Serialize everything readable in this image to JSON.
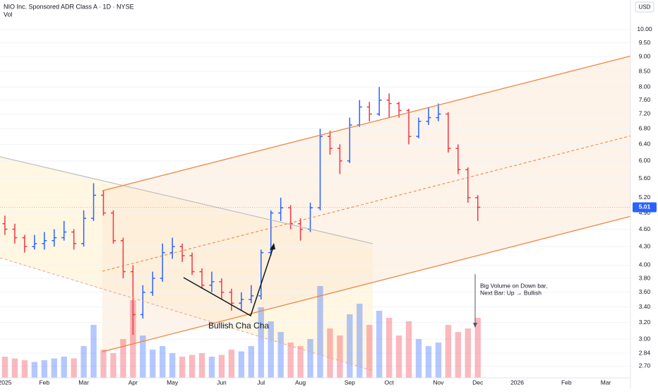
{
  "chart_data": {
    "type": "ohlc",
    "title": "NIO Inc. Sponsored ADR Class A · 1D · NYSE",
    "volume_label": "Vol",
    "currency": "USD",
    "log": true,
    "grid": true,
    "up_color": "#2962ff",
    "down_color": "#f23645",
    "ylim": [
      2.58,
      11.22
    ],
    "yticks": [
      {
        "value": 2.7,
        "label": "2.70"
      },
      {
        "value": 2.84,
        "label": "2.84"
      },
      {
        "value": 3,
        "label": "3.00"
      },
      {
        "value": 3.2,
        "label": "3.20"
      },
      {
        "value": 3.4,
        "label": "3.40"
      },
      {
        "value": 3.6,
        "label": "3.60"
      },
      {
        "value": 3.8,
        "label": "3.80"
      },
      {
        "value": 4,
        "label": "4.00"
      },
      {
        "value": 4.3,
        "label": "4.30"
      },
      {
        "value": 4.6,
        "label": "4.60"
      },
      {
        "value": 4.9,
        "label": "4.90"
      },
      {
        "value": 5.2,
        "label": "5.20"
      },
      {
        "value": 5.6,
        "label": "5.60"
      },
      {
        "value": 6,
        "label": "6.00"
      },
      {
        "value": 6.4,
        "label": "6.40"
      },
      {
        "value": 6.8,
        "label": "6.80"
      },
      {
        "value": 7.2,
        "label": "7.20"
      },
      {
        "value": 7.6,
        "label": "7.60"
      },
      {
        "value": 8,
        "label": "8.00"
      },
      {
        "value": 8.5,
        "label": "8.50"
      },
      {
        "value": 9,
        "label": "9.00"
      },
      {
        "value": 9.5,
        "label": "9.50"
      },
      {
        "value": 10,
        "label": "10.00"
      }
    ],
    "volume_ylim": [
      0,
      300
    ],
    "categories": [
      "2025",
      null,
      null,
      null,
      "Feb",
      null,
      null,
      null,
      "Mar",
      null,
      null,
      null,
      null,
      "Apr",
      null,
      null,
      null,
      "May",
      null,
      null,
      null,
      null,
      "Jun",
      null,
      null,
      null,
      "Jul",
      null,
      null,
      null,
      "Aug",
      null,
      null,
      null,
      null,
      "Sep",
      null,
      null,
      null,
      "Oct",
      null,
      null,
      null,
      null,
      "Nov",
      null,
      null,
      null,
      "Dec",
      null,
      null,
      null,
      "2026",
      null,
      null,
      null,
      null,
      "Feb",
      null,
      null,
      null,
      "Mar",
      null,
      null
    ],
    "open": [
      4.7,
      4.6,
      4.45,
      4.3,
      4.35,
      4.4,
      4.45,
      4.55,
      4.35,
      4.8,
      5.25,
      4.9,
      4.4,
      3.9,
      3.3,
      3.6,
      3.8,
      4.2,
      4.3,
      4.15,
      3.9,
      3.7,
      3.75,
      3.6,
      3.45,
      3.5,
      3.55,
      4.2,
      4.9,
      5.0,
      4.7,
      4.6,
      5.0,
      6.6,
      6.3,
      6.0,
      6.9,
      7.4,
      7.2,
      7.6,
      7.5,
      7.3,
      6.6,
      7.0,
      7.1,
      7.2,
      6.3,
      5.8,
      5.2,
      null,
      null,
      null,
      null,
      null,
      null,
      null,
      null,
      null,
      null,
      null,
      null,
      null,
      null,
      null
    ],
    "high": [
      4.85,
      4.7,
      4.5,
      4.5,
      4.55,
      4.6,
      4.75,
      4.6,
      4.95,
      5.5,
      5.35,
      4.95,
      4.45,
      4.0,
      3.7,
      3.9,
      4.35,
      4.45,
      4.35,
      4.2,
      3.95,
      3.9,
      3.8,
      3.65,
      3.6,
      3.7,
      4.25,
      4.95,
      5.2,
      5.05,
      4.8,
      5.1,
      6.8,
      6.75,
      6.4,
      7.1,
      7.6,
      7.55,
      8.0,
      7.8,
      7.55,
      7.35,
      7.1,
      7.4,
      7.5,
      7.25,
      6.4,
      5.85,
      5.25,
      null,
      null,
      null,
      null,
      null,
      null,
      null,
      null,
      null,
      null,
      null,
      null,
      null,
      null,
      null
    ],
    "low": [
      4.5,
      4.35,
      4.2,
      4.25,
      4.25,
      4.3,
      4.4,
      4.25,
      4.3,
      4.75,
      4.85,
      4.35,
      3.8,
      3.05,
      3.25,
      3.55,
      3.75,
      4.1,
      4.05,
      3.85,
      3.65,
      3.6,
      3.5,
      3.35,
      3.35,
      3.45,
      3.5,
      4.15,
      4.75,
      4.6,
      4.4,
      4.55,
      4.95,
      6.15,
      5.7,
      5.95,
      6.85,
      7.0,
      7.15,
      7.1,
      7.1,
      6.4,
      6.55,
      6.9,
      7.0,
      6.2,
      5.7,
      5.1,
      4.75,
      null,
      null,
      null,
      null,
      null,
      null,
      null,
      null,
      null,
      null,
      null,
      null,
      null,
      null,
      null
    ],
    "close": [
      4.6,
      4.45,
      4.3,
      4.35,
      4.4,
      4.45,
      4.55,
      4.35,
      4.8,
      5.25,
      4.9,
      4.4,
      3.9,
      3.3,
      3.6,
      3.8,
      4.2,
      4.3,
      4.15,
      3.9,
      3.7,
      3.75,
      3.6,
      3.45,
      3.5,
      3.55,
      4.2,
      4.9,
      5.0,
      4.7,
      4.6,
      5.0,
      6.6,
      6.3,
      6.0,
      6.9,
      7.4,
      7.2,
      7.6,
      7.5,
      7.3,
      6.6,
      7.0,
      7.1,
      7.2,
      6.3,
      5.8,
      5.2,
      5.01,
      null,
      null,
      null,
      null,
      null,
      null,
      null,
      null,
      null,
      null,
      null,
      null,
      null,
      null,
      null
    ],
    "volume": [
      60,
      55,
      50,
      45,
      50,
      55,
      60,
      55,
      90,
      150,
      80,
      70,
      110,
      220,
      120,
      80,
      90,
      70,
      60,
      65,
      70,
      60,
      65,
      80,
      75,
      90,
      200,
      160,
      130,
      100,
      90,
      110,
      260,
      140,
      120,
      180,
      210,
      150,
      190,
      170,
      120,
      160,
      110,
      90,
      100,
      150,
      130,
      140,
      170,
      null,
      null,
      null,
      null,
      null,
      null,
      null,
      null,
      null,
      null,
      null,
      null,
      null,
      null,
      null
    ],
    "annotations": [
      "Bullish Cha Cha",
      "Big Volume on Down bar,",
      "Next Bar: Up → Bullish"
    ]
  }
}
